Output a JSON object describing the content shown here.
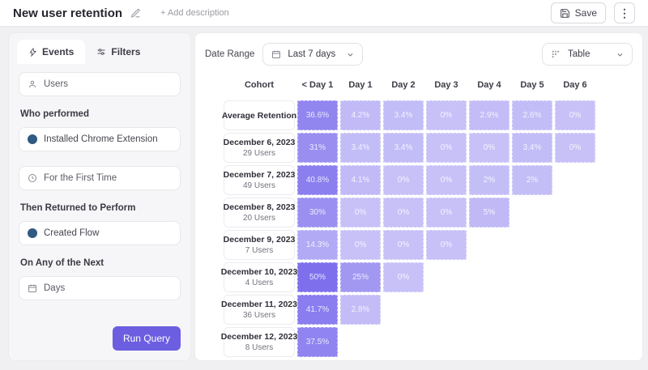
{
  "topbar": {
    "title": "New user retention",
    "add_description": "+ Add description",
    "save_label": "Save",
    "kebab_glyph": "⋮"
  },
  "sidebar": {
    "tabs": [
      {
        "label": "Events"
      },
      {
        "label": "Filters"
      }
    ],
    "users_label": "Users",
    "who_performed_label": "Who performed",
    "event_1_label": "Installed Chrome Extension",
    "first_time_label": "For the First Time",
    "then_returned_label": "Then Returned to Perform",
    "event_2_label": "Created Flow",
    "on_any_label": "On Any of the Next",
    "days_label": "Days",
    "run_query_label": "Run Query"
  },
  "toolbar": {
    "date_range_label": "Date Range",
    "date_range_value": "Last 7 days",
    "view_selector_value": "Table"
  },
  "colors": {
    "accent_purple": "#6c5ee0",
    "heatmap_base": "#6c5ceb",
    "event_dot_blue": "#305a80"
  },
  "chart_data": {
    "type": "heatmap",
    "title": "New user retention",
    "columns": [
      "Cohort",
      "< Day 1",
      "Day 1",
      "Day 2",
      "Day 3",
      "Day 4",
      "Day 5",
      "Day 6"
    ],
    "rows": [
      {
        "label": "Average Retention",
        "sublabel": "",
        "display": [
          "36.6%",
          "4.2%",
          "3.4%",
          "0%",
          "2.9%",
          "2.6%",
          "0%"
        ],
        "values": [
          36.6,
          4.2,
          3.4,
          0,
          2.9,
          2.6,
          0
        ]
      },
      {
        "label": "December 6, 2023",
        "sublabel": "29 Users",
        "display": [
          "31%",
          "3.4%",
          "3.4%",
          "0%",
          "0%",
          "3.4%",
          "0%"
        ],
        "values": [
          31,
          3.4,
          3.4,
          0,
          0,
          3.4,
          0
        ]
      },
      {
        "label": "December 7, 2023",
        "sublabel": "49 Users",
        "display": [
          "40.8%",
          "4.1%",
          "0%",
          "0%",
          "2%",
          "2%"
        ],
        "values": [
          40.8,
          4.1,
          0,
          0,
          2,
          2
        ]
      },
      {
        "label": "December 8, 2023",
        "sublabel": "20 Users",
        "display": [
          "30%",
          "0%",
          "0%",
          "0%",
          "5%"
        ],
        "values": [
          30,
          0,
          0,
          0,
          5
        ]
      },
      {
        "label": "December 9, 2023",
        "sublabel": "7 Users",
        "display": [
          "14.3%",
          "0%",
          "0%",
          "0%"
        ],
        "values": [
          14.3,
          0,
          0,
          0
        ]
      },
      {
        "label": "December 10, 2023",
        "sublabel": "4 Users",
        "display": [
          "50%",
          "25%",
          "0%"
        ],
        "values": [
          50,
          25,
          0
        ]
      },
      {
        "label": "December 11, 2023",
        "sublabel": "36 Users",
        "display": [
          "41.7%",
          "2.8%"
        ],
        "values": [
          41.7,
          2.8
        ]
      },
      {
        "label": "December 12, 2023",
        "sublabel": "8 Users",
        "display": [
          "37.5%"
        ],
        "values": [
          37.5
        ]
      }
    ],
    "color_scale": {
      "base": "#6c5ceb",
      "min_alpha": 0.38,
      "max_alpha": 0.88,
      "max_value": 50
    },
    "legend_position": "none",
    "grid": false
  }
}
